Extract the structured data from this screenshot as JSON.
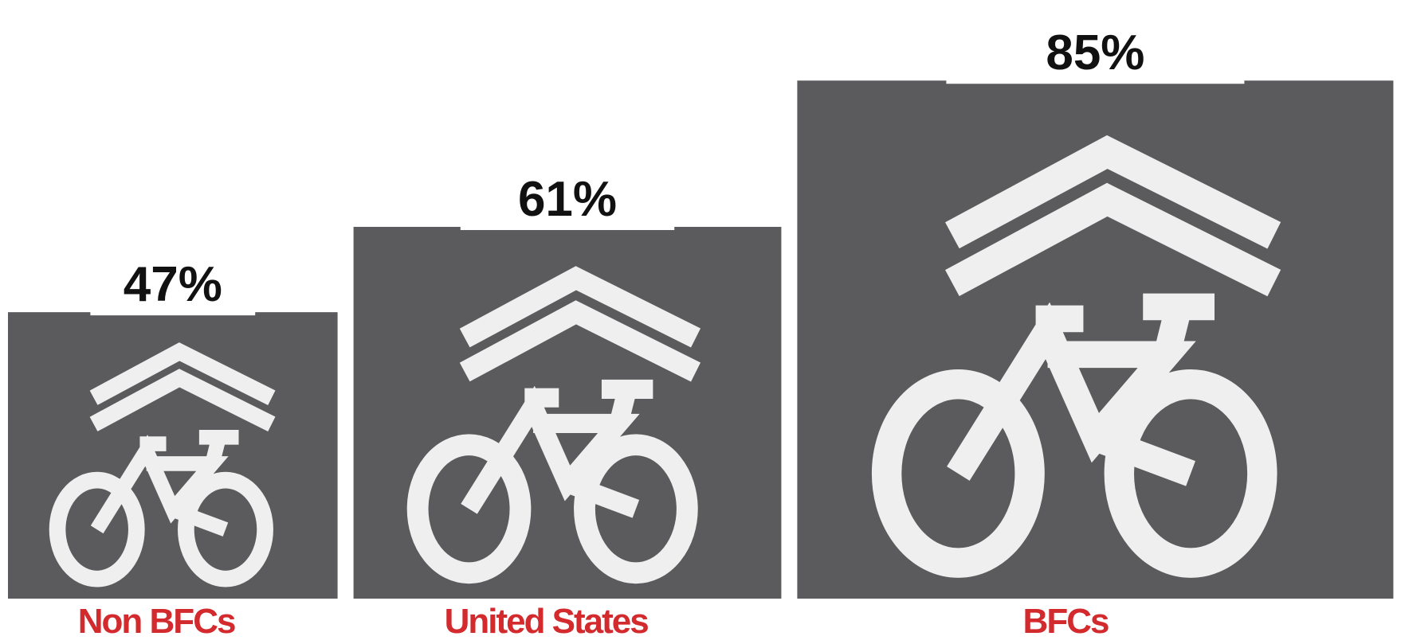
{
  "chart_data": {
    "type": "pictograph",
    "categories": [
      "Non BFCs",
      "United States",
      "BFCs"
    ],
    "values": [
      47,
      61,
      85
    ],
    "value_labels": [
      "47%",
      "61%",
      "85%"
    ],
    "color": "#5b5b5d",
    "label_color": "#d32a2e"
  }
}
